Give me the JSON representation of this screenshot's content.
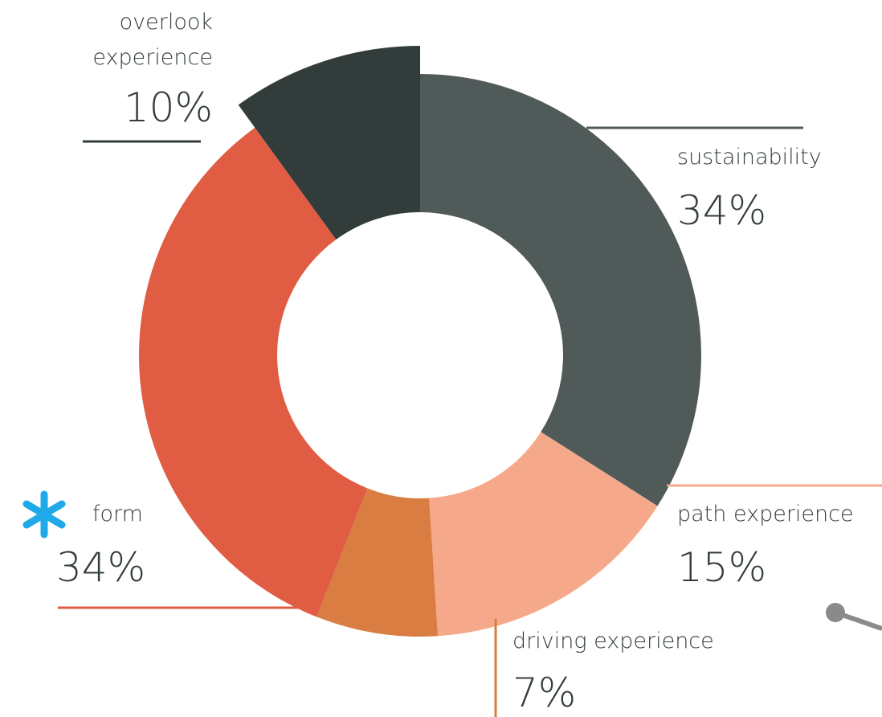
{
  "chart_data": {
    "type": "donut",
    "categories": [
      "sustainability",
      "path experience",
      "driving experience",
      "form",
      "overlook experience"
    ],
    "values": [
      34,
      15,
      7,
      34,
      10
    ],
    "value_labels": [
      "34%",
      "15%",
      "7%",
      "34%",
      "10%"
    ],
    "colors": [
      "#505a59",
      "#f5a98a",
      "#d97d42",
      "#e05c43",
      "#323d3b"
    ]
  }
}
